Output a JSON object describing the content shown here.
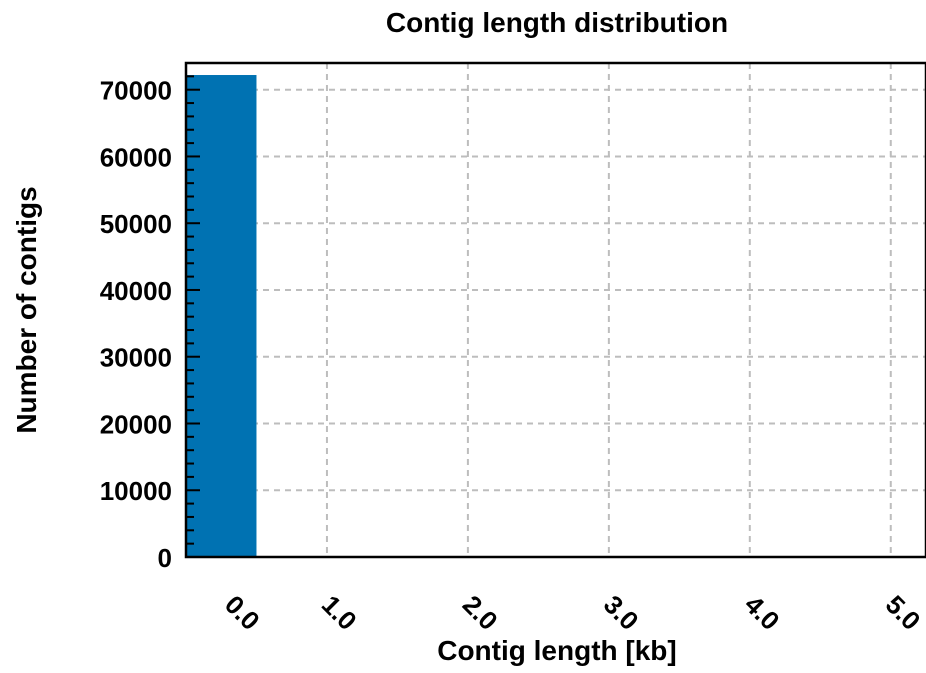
{
  "chart_data": {
    "type": "bar",
    "title": "Contig length distribution",
    "xlabel": "Contig length [kb]",
    "ylabel": "Number of contigs",
    "bar_color": "#0072b2",
    "grid": true,
    "bins": [
      {
        "x_start": 0.0,
        "x_end": 0.5,
        "value": 72200
      }
    ],
    "xlim": [
      0.0,
      5.25
    ],
    "ylim": [
      0,
      74000
    ],
    "x_ticks": [
      {
        "value": 0.0,
        "label": "0.0"
      },
      {
        "value": 1.0,
        "label": "1.0"
      },
      {
        "value": 2.0,
        "label": "2.0"
      },
      {
        "value": 3.0,
        "label": "3.0"
      },
      {
        "value": 4.0,
        "label": "4.0"
      },
      {
        "value": 5.0,
        "label": "5.0"
      }
    ],
    "y_ticks": [
      {
        "value": 0,
        "label": "0"
      },
      {
        "value": 10000,
        "label": "10000"
      },
      {
        "value": 20000,
        "label": "20000"
      },
      {
        "value": 30000,
        "label": "30000"
      },
      {
        "value": 40000,
        "label": "40000"
      },
      {
        "value": 50000,
        "label": "50000"
      },
      {
        "value": 60000,
        "label": "60000"
      },
      {
        "value": 70000,
        "label": "70000"
      }
    ],
    "y_minor_step": 2000
  }
}
